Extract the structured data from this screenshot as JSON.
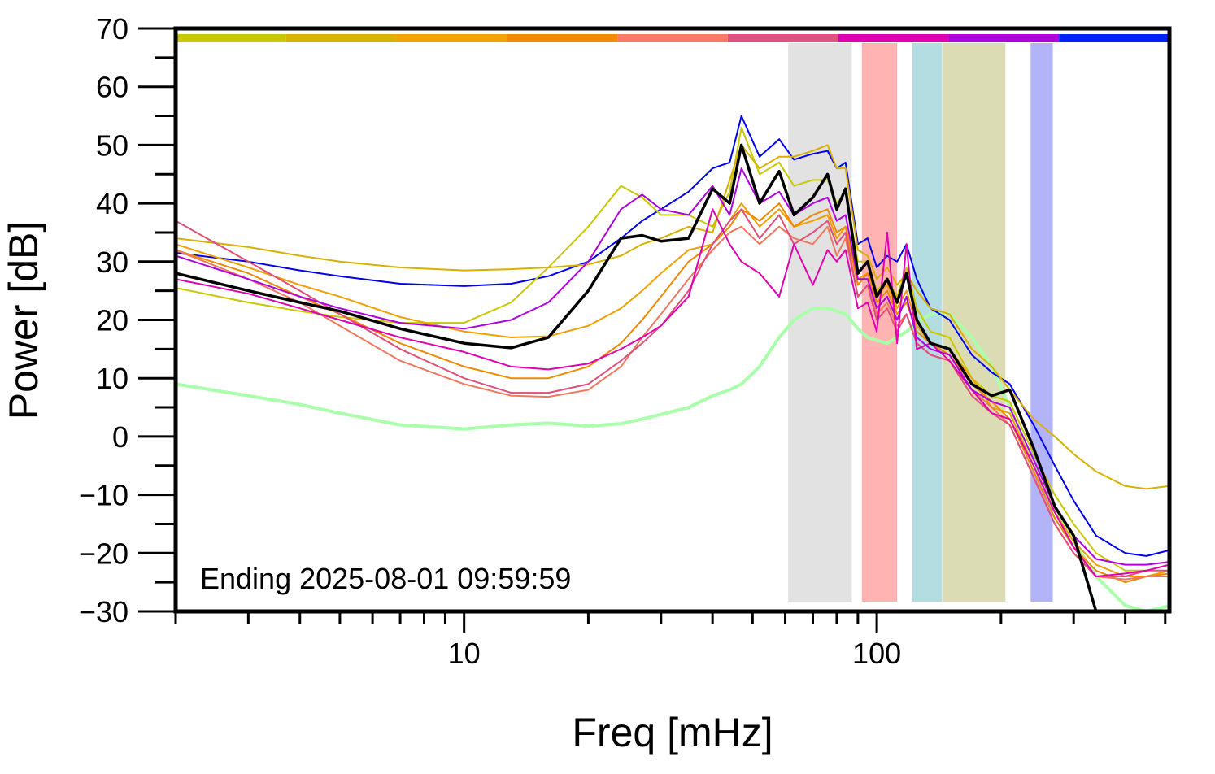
{
  "chart_data": {
    "type": "line",
    "xlabel": "Freq [mHz]",
    "ylabel": "Power [dB]",
    "annotation": "Ending 2025-08-01 09:59:59",
    "xscale": "log",
    "xlim": [
      2,
      512
    ],
    "ylim": [
      -30,
      70
    ],
    "xticks": [
      10,
      100
    ],
    "xminor_ticks": [
      2,
      3,
      4,
      5,
      6,
      7,
      8,
      9,
      20,
      30,
      40,
      50,
      60,
      70,
      80,
      90,
      200,
      300,
      400,
      500
    ],
    "yticks": [
      {
        "value": -30,
        "label": "−30"
      },
      {
        "value": -20,
        "label": "−20"
      },
      {
        "value": -10,
        "label": "−10"
      },
      0,
      10,
      20,
      30,
      40,
      50,
      60,
      70
    ],
    "yminor_ticks": [
      -25,
      -15,
      -5,
      5,
      15,
      25,
      35,
      45,
      55,
      65
    ],
    "color_bar": [
      "#c8c800",
      "#d8b400",
      "#f0a400",
      "#f08c00",
      "#f87c64",
      "#e05080",
      "#e000b0",
      "#b000e0",
      "#0020ff"
    ],
    "bands": [
      {
        "xmin": 61,
        "xmax": 87,
        "color": "#e2e2e2"
      },
      {
        "xmin": 92,
        "xmax": 112,
        "color": "#ffb3b3"
      },
      {
        "xmin": 122,
        "xmax": 144,
        "color": "#b3dde0"
      },
      {
        "xmin": 145,
        "xmax": 205,
        "color": "#dcdcb4"
      },
      {
        "xmin": 236,
        "xmax": 267,
        "color": "#b3b3f8"
      }
    ],
    "x": [
      2,
      3,
      4,
      5,
      7,
      10,
      13,
      16,
      20,
      24,
      27,
      30,
      35,
      40,
      44,
      47,
      52,
      58,
      63,
      70,
      76,
      80,
      84,
      90,
      95,
      100,
      106,
      112,
      118,
      125,
      135,
      150,
      170,
      190,
      210,
      240,
      270,
      300,
      340,
      400,
      450,
      512
    ],
    "series": [
      {
        "color": "#aaffaa",
        "width": 4,
        "values": [
          9,
          7,
          5.5,
          4,
          2,
          1.3,
          2,
          2.3,
          1.8,
          2.2,
          3,
          3.8,
          5,
          7,
          8,
          9,
          12,
          17,
          20,
          22,
          22,
          21.5,
          21,
          18.5,
          17,
          16.5,
          16,
          17,
          18,
          19.5,
          21,
          21,
          17,
          12,
          5,
          -5,
          -12,
          -18,
          -24,
          -29,
          -30,
          -29
        ]
      },
      {
        "color": "#0000ee",
        "width": 2,
        "values": [
          31.5,
          30,
          28.5,
          27.5,
          26.2,
          25.8,
          26.2,
          27.5,
          30,
          34,
          37,
          39,
          42,
          46,
          47,
          55,
          48,
          51,
          47.5,
          48.5,
          49,
          46,
          47,
          33,
          34,
          29,
          31,
          30,
          33,
          27,
          22,
          20,
          14,
          11,
          9,
          2,
          -5,
          -11,
          -17,
          -20,
          -20.5,
          -19.5
        ]
      },
      {
        "color": "#c8c800",
        "width": 2,
        "values": [
          25.5,
          23,
          21.5,
          20.5,
          19.5,
          19.5,
          23,
          29,
          36,
          43,
          41,
          38,
          38,
          36,
          42,
          53,
          45,
          47,
          43,
          44,
          44,
          40,
          42,
          30,
          30,
          25,
          27,
          24,
          29,
          22,
          18,
          17,
          10,
          7,
          6,
          -3,
          -10,
          -15,
          -20,
          -23,
          -23,
          -22
        ]
      },
      {
        "color": "#d8b000",
        "width": 2,
        "values": [
          34,
          32.5,
          31,
          30,
          29,
          28.5,
          28.7,
          29,
          29.5,
          31,
          33,
          34,
          36,
          35,
          44,
          50,
          46,
          48,
          48,
          49,
          50,
          46,
          46,
          32,
          31,
          27,
          29,
          26,
          28,
          25,
          22,
          21,
          15,
          12,
          8,
          3,
          0,
          -3,
          -6,
          -8.5,
          -9,
          -8.5
        ]
      },
      {
        "color": "#f0a000",
        "width": 2,
        "values": [
          33,
          29,
          26,
          24,
          20.5,
          18,
          17,
          17.2,
          19,
          22,
          25,
          28,
          32,
          33,
          37,
          40,
          36,
          39,
          36,
          37,
          38,
          34,
          36,
          27,
          28,
          24,
          26,
          22,
          25,
          19,
          16,
          15,
          10,
          5,
          4,
          -5,
          -13,
          -18,
          -22,
          -24,
          -24,
          -23
        ]
      },
      {
        "color": "#f08800",
        "width": 2,
        "values": [
          32,
          28,
          24,
          21,
          16,
          12,
          10,
          10,
          12,
          16,
          20,
          24,
          30,
          33,
          36,
          39,
          37,
          40,
          36,
          38,
          39,
          35,
          36,
          26,
          28,
          23,
          25,
          21,
          23,
          18,
          16,
          14,
          9,
          6,
          3,
          -6,
          -14,
          -19,
          -23,
          -25,
          -24,
          -23.5
        ]
      },
      {
        "color": "#f07860",
        "width": 2,
        "values": [
          32,
          27,
          23,
          19,
          13,
          9,
          7,
          6.8,
          8,
          12,
          17,
          21,
          27,
          32,
          35,
          36,
          33,
          36,
          34,
          33,
          36,
          31,
          34,
          24,
          26,
          21,
          23,
          19,
          21,
          16,
          14,
          13,
          8,
          5,
          2,
          -7,
          -15,
          -20,
          -24,
          -24.5,
          -24,
          -24
        ]
      },
      {
        "color": "#e05078",
        "width": 2,
        "values": [
          37,
          30,
          25,
          21,
          15,
          10,
          7.5,
          7.5,
          9,
          13,
          16,
          19,
          25,
          33,
          37,
          39,
          34,
          38,
          33,
          35,
          37,
          33,
          35,
          24,
          26,
          20,
          22,
          18,
          21,
          16,
          14,
          13,
          7,
          4,
          2,
          -7,
          -15,
          -20,
          -24,
          -24,
          -23,
          -23
        ]
      },
      {
        "color": "#e000b0",
        "width": 2,
        "values": [
          27,
          24.5,
          22,
          20,
          17,
          14.5,
          12,
          11.5,
          12.5,
          15,
          17,
          19,
          24,
          39,
          33,
          30,
          28,
          24,
          33,
          26,
          32,
          30,
          32,
          22,
          23,
          18,
          35,
          16,
          33,
          15,
          16,
          13,
          8,
          4,
          3,
          -5,
          -13,
          -19,
          -24,
          -23.5,
          -23,
          -22
        ]
      },
      {
        "color": "#b000e0",
        "width": 2,
        "values": [
          31,
          27,
          24,
          22,
          19.5,
          18.5,
          20,
          23,
          30,
          39,
          41.5,
          39,
          38,
          43,
          38,
          46,
          40,
          42,
          38,
          40,
          41,
          37,
          38,
          27,
          27,
          22,
          24,
          20,
          24,
          17,
          15,
          14,
          8,
          6,
          5,
          -4,
          -12,
          -17,
          -21,
          -22,
          -22,
          -21.5
        ]
      },
      {
        "color": "#000000",
        "width": 3.5,
        "values": [
          28,
          25,
          23,
          21.5,
          18.5,
          16,
          15.2,
          17,
          25,
          34,
          34.5,
          33.5,
          34,
          42.5,
          40,
          50,
          40,
          45.5,
          38,
          41,
          45,
          39,
          42.5,
          28,
          30,
          24,
          27,
          23,
          28,
          20,
          16,
          15,
          9,
          7,
          8,
          -2,
          -12,
          -17,
          -30,
          null,
          null,
          null
        ]
      }
    ]
  }
}
